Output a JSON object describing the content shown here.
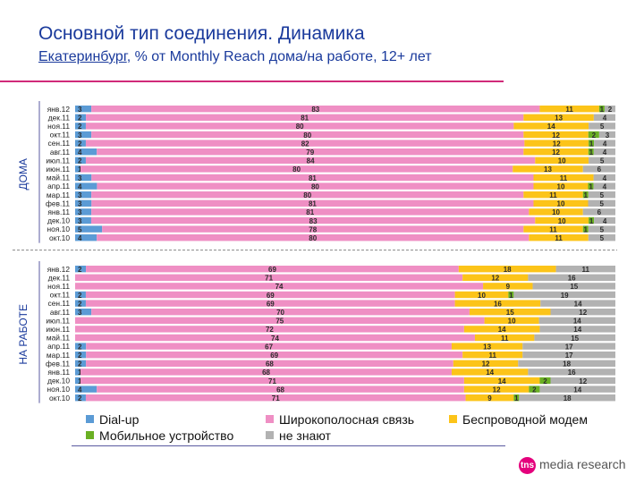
{
  "header": {
    "title": "Основной тип соединения. Динамика",
    "subtitle_city": "Екатеринбург",
    "subtitle_rest": ", % от Monthly Reach дома/на работе, 12+ лет"
  },
  "colors": {
    "Dial-up": "#5b9bd5",
    "Широкополосная связь": "#ef8fc4",
    "Беспроводной модем": "#fcc419",
    "Мобильное устройство": "#6ab023",
    "не знают": "#b2b2b2",
    "title": "#1a3a9c",
    "accent_line": "#d02a79"
  },
  "chart_data": [
    {
      "type": "bar",
      "orientation": "horizontal-stacked-100",
      "panel_label": "ДОМА",
      "categories": [
        "янв.12",
        "дек.11",
        "ноя.11",
        "окт.11",
        "сен.11",
        "авг.11",
        "июл.11",
        "июн.11",
        "май.11",
        "апр.11",
        "мар.11",
        "фев.11",
        "янв.11",
        "дек.10",
        "ноя.10",
        "окт.10"
      ],
      "series": [
        {
          "name": "Dial-up",
          "values": [
            3,
            2,
            2,
            3,
            2,
            4,
            2,
            1,
            3,
            4,
            3,
            3,
            3,
            3,
            5,
            4
          ]
        },
        {
          "name": "Широкополосная связь",
          "values": [
            83,
            81,
            80,
            80,
            82,
            79,
            84,
            80,
            81,
            80,
            80,
            81,
            81,
            83,
            78,
            80
          ]
        },
        {
          "name": "Беспроводной модем",
          "values": [
            11,
            13,
            14,
            12,
            12,
            12,
            10,
            13,
            11,
            10,
            11,
            10,
            10,
            10,
            11,
            11
          ]
        },
        {
          "name": "Мобильное устройство",
          "values": [
            1,
            null,
            null,
            2,
            1,
            1,
            null,
            null,
            null,
            1,
            1,
            null,
            null,
            1,
            1,
            null
          ]
        },
        {
          "name": "не знают",
          "values": [
            2,
            4,
            5,
            3,
            4,
            4,
            5,
            6,
            4,
            4,
            5,
            5,
            6,
            4,
            5,
            5
          ]
        }
      ],
      "xlim": [
        0,
        100
      ]
    },
    {
      "type": "bar",
      "orientation": "horizontal-stacked-100",
      "panel_label": "НА РАБОТЕ",
      "categories": [
        "янв.12",
        "дек.11",
        "ноя.11",
        "окт.11",
        "сен.11",
        "авг.11",
        "июл.11",
        "июн.11",
        "май.11",
        "апр.11",
        "мар.11",
        "фев.11",
        "янв.11",
        "дек.10",
        "ноя.10",
        "окт.10"
      ],
      "series": [
        {
          "name": "Dial-up",
          "values": [
            2,
            null,
            null,
            2,
            2,
            3,
            null,
            null,
            null,
            2,
            2,
            2,
            1,
            1,
            4,
            2
          ]
        },
        {
          "name": "Широкополосная связь",
          "values": [
            69,
            71,
            74,
            69,
            69,
            70,
            75,
            72,
            74,
            67,
            69,
            68,
            68,
            71,
            68,
            71
          ]
        },
        {
          "name": "Беспроводной модем",
          "values": [
            18,
            12,
            9,
            10,
            16,
            15,
            10,
            14,
            11,
            13,
            11,
            12,
            14,
            14,
            12,
            9
          ]
        },
        {
          "name": "Мобильное устройство",
          "values": [
            null,
            null,
            null,
            1,
            null,
            null,
            null,
            null,
            null,
            null,
            null,
            null,
            null,
            2,
            2,
            1
          ]
        },
        {
          "name": "не знают",
          "values": [
            11,
            16,
            15,
            19,
            14,
            12,
            14,
            14,
            15,
            17,
            17,
            18,
            16,
            12,
            14,
            18
          ]
        }
      ],
      "xlim": [
        0,
        100
      ]
    }
  ],
  "legend": [
    {
      "key": "Dial-up",
      "label": "Dial-up"
    },
    {
      "key": "Широкополосная связь",
      "label": "Широкополосная связь"
    },
    {
      "key": "Беспроводной модем",
      "label": "Беспроводной модем"
    },
    {
      "key": "Мобильное устройство",
      "label": "Мобильное устройство"
    },
    {
      "key": "не знают",
      "label": "не знают"
    }
  ],
  "logo": {
    "mark": "tns",
    "text": "media research"
  }
}
